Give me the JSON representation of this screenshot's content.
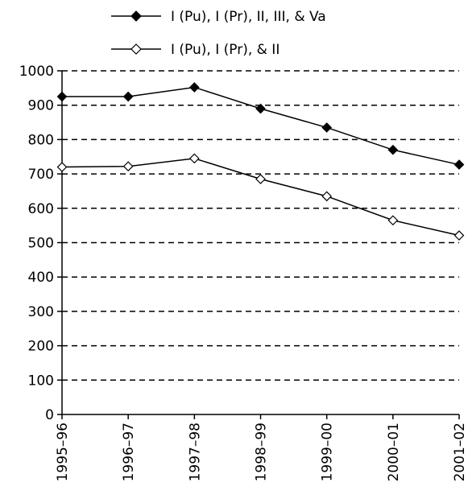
{
  "chart_data": {
    "type": "line",
    "categories": [
      "1995–96",
      "1996–97",
      "1997–98",
      "1998–99",
      "1999–00",
      "2000–01",
      "2001–02"
    ],
    "series": [
      {
        "name": "I (Pu), I (Pr), II, III, & Va",
        "marker": "filled-diamond",
        "values": [
          925,
          925,
          952,
          890,
          835,
          770,
          727
        ]
      },
      {
        "name": "I (Pu), I (Pr), & II",
        "marker": "open-diamond",
        "values": [
          720,
          722,
          745,
          685,
          635,
          565,
          521
        ]
      }
    ],
    "ylim": [
      0,
      1000
    ],
    "yticks": [
      "0",
      "100",
      "200",
      "300",
      "400",
      "500",
      "600",
      "700",
      "800",
      "900",
      "1000"
    ],
    "grid": "dashed horizontal",
    "legend_position": "top"
  }
}
